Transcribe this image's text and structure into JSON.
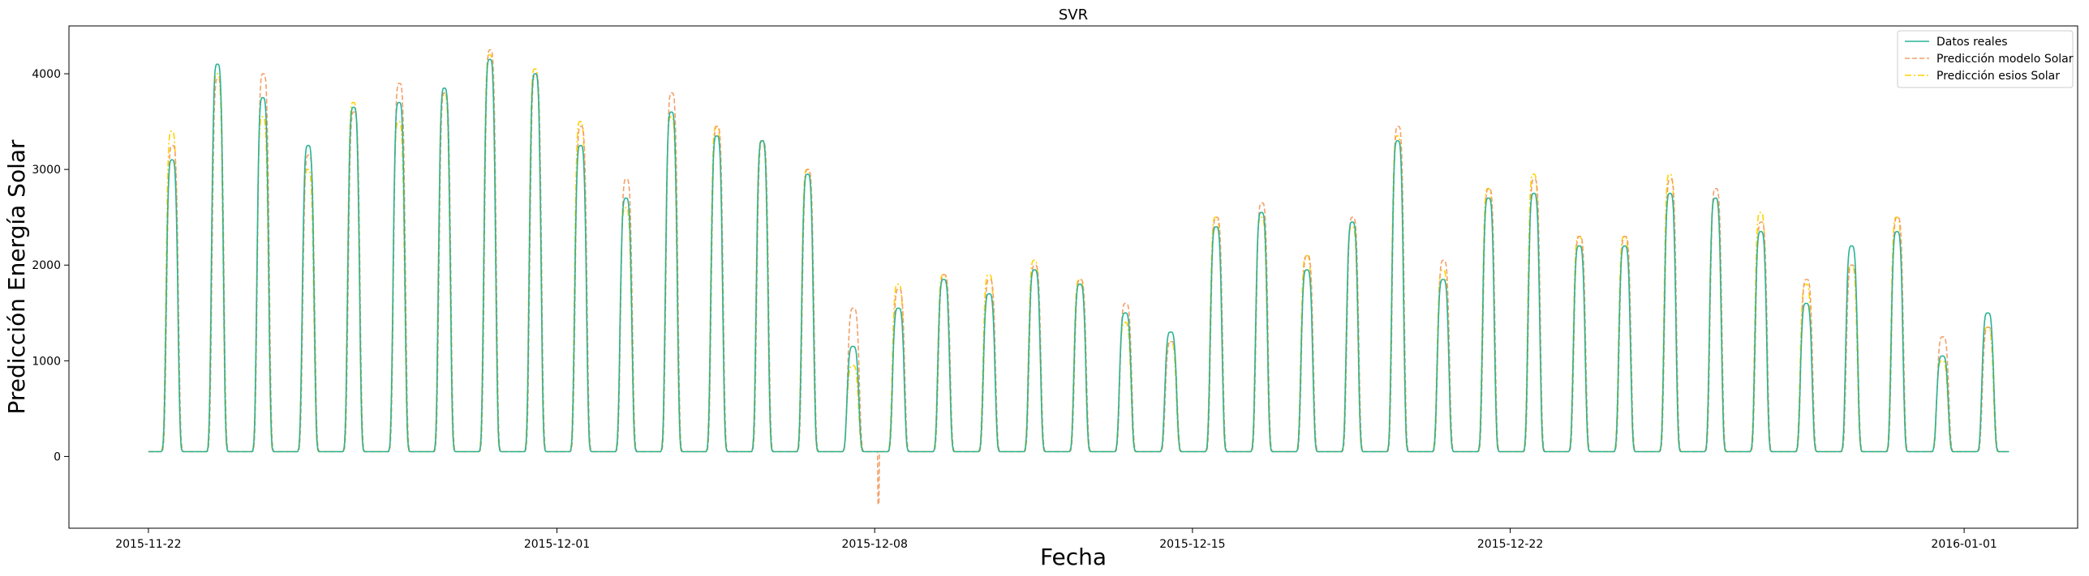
{
  "chart_data": {
    "type": "line",
    "title": "SVR",
    "xlabel": "Fecha",
    "ylabel": "Predicción Energía Solar",
    "xlim": [
      "2015-11-20T06:00",
      "2016-01-03T12:00"
    ],
    "ylim": [
      -750,
      4500
    ],
    "x_ticks": [
      "2015-11-22",
      "2015-12-01",
      "2015-12-08",
      "2015-12-15",
      "2015-12-22",
      "2016-01-01"
    ],
    "y_ticks": [
      0,
      1000,
      2000,
      3000,
      4000
    ],
    "grid": false,
    "legend_position": "top-right",
    "x_start_date": "2015-11-22",
    "daily_peaks": {
      "dates": [
        "2015-11-22",
        "2015-11-23",
        "2015-11-24",
        "2015-11-25",
        "2015-11-26",
        "2015-11-27",
        "2015-11-28",
        "2015-11-29",
        "2015-11-30",
        "2015-12-01",
        "2015-12-02",
        "2015-12-03",
        "2015-12-04",
        "2015-12-05",
        "2015-12-06",
        "2015-12-07",
        "2015-12-08",
        "2015-12-09",
        "2015-12-10",
        "2015-12-11",
        "2015-12-12",
        "2015-12-13",
        "2015-12-14",
        "2015-12-15",
        "2015-12-16",
        "2015-12-17",
        "2015-12-18",
        "2015-12-19",
        "2015-12-20",
        "2015-12-21",
        "2015-12-22",
        "2015-12-23",
        "2015-12-24",
        "2015-12-25",
        "2015-12-26",
        "2015-12-27",
        "2015-12-28",
        "2015-12-29",
        "2015-12-30",
        "2015-12-31",
        "2016-01-01"
      ],
      "real": [
        3100,
        4100,
        3750,
        3250,
        3650,
        3700,
        3850,
        4150,
        4000,
        3250,
        2700,
        3600,
        3350,
        3300,
        2950,
        1150,
        1550,
        1850,
        1700,
        1950,
        1800,
        1500,
        1300,
        2400,
        2550,
        1950,
        2450,
        3300,
        1850,
        2700,
        2750,
        2200,
        2200,
        2750,
        2700,
        2350,
        1600,
        2200,
        2350,
        1050,
        1500
      ],
      "model": [
        3250,
        3950,
        4000,
        3150,
        3600,
        3900,
        3800,
        4250,
        4000,
        3450,
        2900,
        3800,
        3450,
        3300,
        3000,
        1550,
        1750,
        1900,
        1850,
        2000,
        1850,
        1600,
        1200,
        2500,
        2650,
        2100,
        2500,
        3450,
        2050,
        2800,
        2900,
        2300,
        2300,
        2900,
        2800,
        2450,
        1850,
        2000,
        2500,
        1250,
        1350
      ],
      "esios": [
        3400,
        4000,
        3550,
        3000,
        3700,
        3500,
        3800,
        4200,
        4050,
        3500,
        2600,
        3550,
        3450,
        3300,
        3000,
        950,
        1800,
        1900,
        1900,
        2050,
        1850,
        1400,
        1200,
        2500,
        2500,
        2100,
        2400,
        3350,
        1950,
        2800,
        2950,
        2300,
        2300,
        2950,
        2700,
        2550,
        1800,
        2000,
        2500,
        1000,
        1350
      ]
    },
    "night_baseline": 50,
    "model_dips": [
      {
        "date": "2015-12-08",
        "value": -500
      }
    ],
    "series": [
      {
        "name": "Datos reales",
        "color": "#2ab397",
        "style": "solid",
        "key": "real"
      },
      {
        "name": "Predicción modelo Solar",
        "color": "#f4a06a",
        "style": "dashed",
        "key": "model"
      },
      {
        "name": "Predicción esios Solar",
        "color": "#ffd200",
        "style": "dashdot",
        "key": "esios"
      }
    ]
  }
}
